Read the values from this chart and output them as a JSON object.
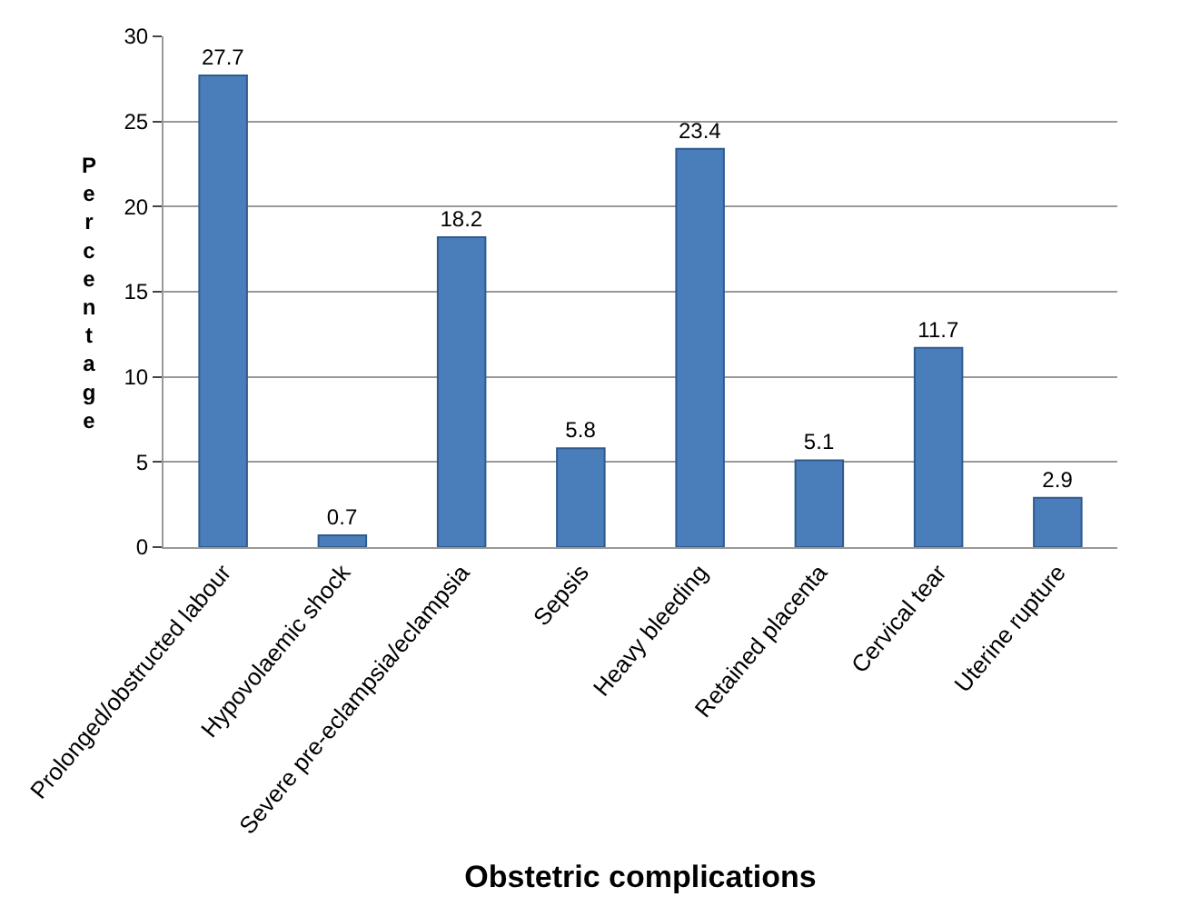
{
  "chart_data": {
    "type": "bar",
    "xlabel": "Obstetric complications",
    "ylabel": "Percentage",
    "categories": [
      "Prolonged/obstructed labour",
      "Hypovolaemic shock",
      "Severe pre-eclampsia/eclampsia",
      "Sepsis",
      "Heavy bleeding",
      "Retained placenta",
      "Cervical tear",
      "Uterine rupture"
    ],
    "values": [
      27.7,
      0.7,
      18.2,
      5.8,
      23.4,
      5.1,
      11.7,
      2.9
    ],
    "color": "#4a7ebb",
    "ylim": [
      0,
      30
    ],
    "yticks": [
      0,
      5,
      10,
      15,
      20,
      25,
      30
    ],
    "grid": "y",
    "data_labels": true,
    "legend": false
  }
}
